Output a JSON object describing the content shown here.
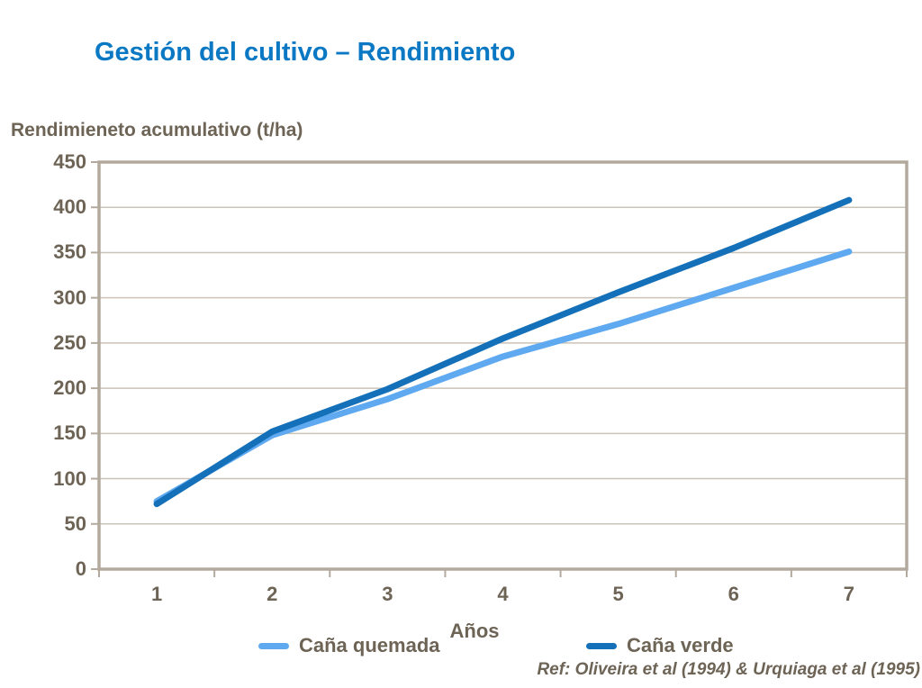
{
  "page": {
    "title": "Gestión del cultivo – Rendimiento",
    "ref_text": "Ref: Oliveira et al (1994) & Urquiaga et al (1995)"
  },
  "chart_data": {
    "type": "line",
    "title": "Gestión del cultivo – Rendimiento",
    "ylabel": "Rendimieneto acumulativo (t/ha)",
    "xlabel": "Años",
    "categories": [
      "1",
      "2",
      "3",
      "4",
      "5",
      "6",
      "7"
    ],
    "series": [
      {
        "name": "Caña quemada",
        "color": "#5fa9f0",
        "values": [
          75,
          148,
          188,
          235,
          271,
          311,
          351
        ]
      },
      {
        "name": "Caña verde",
        "color": "#1470b8",
        "values": [
          72,
          152,
          199,
          255,
          306,
          355,
          408
        ]
      }
    ],
    "ylim": [
      0,
      450
    ],
    "yticks": [
      0,
      50,
      100,
      150,
      200,
      250,
      300,
      350,
      400,
      450
    ],
    "grid": true,
    "legend_position": "bottom",
    "line_width": 7
  },
  "colors": {
    "title_blue": "#0b78c4",
    "axis_text": "#6d6456",
    "plot_border": "#b3aa9d",
    "gridline": "#cbc3b7",
    "background": "#ffffff"
  }
}
